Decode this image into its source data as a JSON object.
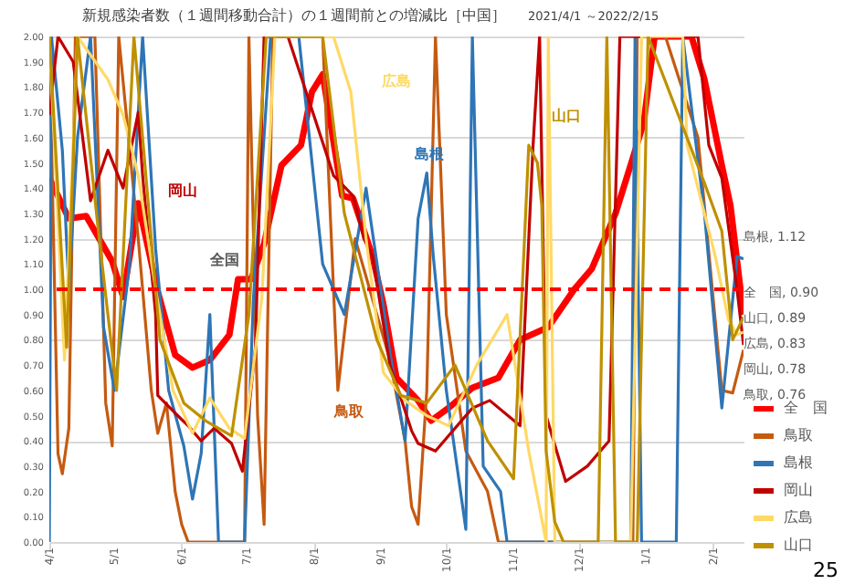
{
  "chart_data": {
    "type": "line",
    "title": "新規感染者数（１週間移動合計）の１週間前との増減比［中国］",
    "subtitle": "2021/4/1 ～2022/2/15",
    "xlim": [
      "2021-04-01",
      "2022-02-15"
    ],
    "ylim": [
      0,
      2
    ],
    "yticks": [
      {
        "value": 0,
        "label": "0.00"
      },
      {
        "value": 0.1,
        "label": "0.10"
      },
      {
        "value": 0.2,
        "label": "0.20"
      },
      {
        "value": 0.3,
        "label": "0.30"
      },
      {
        "value": 0.4,
        "label": "0.40"
      },
      {
        "value": 0.5,
        "label": "0.50"
      },
      {
        "value": 0.6,
        "label": "0.60"
      },
      {
        "value": 0.7,
        "label": "0.70"
      },
      {
        "value": 0.8,
        "label": "0.80"
      },
      {
        "value": 0.9,
        "label": "0.90"
      },
      {
        "value": 1,
        "label": "1.00"
      },
      {
        "value": 1.1,
        "label": "1.10"
      },
      {
        "value": 1.2,
        "label": "1.20"
      },
      {
        "value": 1.3,
        "label": "1.30"
      },
      {
        "value": 1.4,
        "label": "1.40"
      },
      {
        "value": 1.5,
        "label": "1.50"
      },
      {
        "value": 1.6,
        "label": "1.60"
      },
      {
        "value": 1.7,
        "label": "1.70"
      },
      {
        "value": 1.8,
        "label": "1.80"
      },
      {
        "value": 1.9,
        "label": "1.90"
      },
      {
        "value": 2,
        "label": "2.00"
      }
    ],
    "xticks": [
      {
        "value": "2021-04-01",
        "label": "4/1"
      },
      {
        "value": "2021-05-01",
        "label": "5/1"
      },
      {
        "value": "2021-06-01",
        "label": "6/1"
      },
      {
        "value": "2021-07-01",
        "label": "7/1"
      },
      {
        "value": "2021-08-01",
        "label": "8/1"
      },
      {
        "value": "2021-09-01",
        "label": "9/1"
      },
      {
        "value": "2021-10-01",
        "label": "10/1"
      },
      {
        "value": "2021-11-01",
        "label": "11/1"
      },
      {
        "value": "2021-12-01",
        "label": "12/1"
      },
      {
        "value": "2022-01-01",
        "label": "1/1"
      },
      {
        "value": "2022-02-01",
        "label": "2/1"
      }
    ],
    "grid": "y",
    "legend": "bottom right",
    "marker": "none",
    "line_style": "solid",
    "ref_lines": [
      {
        "axis": "y",
        "value": 1,
        "color": "#ff0000",
        "line_style": "dashed"
      }
    ],
    "series": [
      {
        "name": "全　国",
        "color": "#ff0000",
        "x": [
          "2021-04-01",
          "2021-04-10",
          "2021-04-18",
          "2021-04-30",
          "2021-05-05",
          "2021-05-12",
          "2021-05-21",
          "2021-05-29",
          "2021-06-06",
          "2021-06-14",
          "2021-06-23",
          "2021-06-27",
          "2021-07-03",
          "2021-07-09",
          "2021-07-17",
          "2021-07-26",
          "2021-07-31",
          "2021-08-05",
          "2021-08-14",
          "2021-08-19",
          "2021-08-28",
          "2021-09-02",
          "2021-09-08",
          "2021-09-18",
          "2021-09-24",
          "2021-10-02",
          "2021-10-13",
          "2021-10-25",
          "2021-11-04",
          "2021-11-17",
          "2021-11-29",
          "2021-12-07",
          "2021-12-18",
          "2021-12-26",
          "2021-12-31",
          "2022-01-05",
          "2022-01-14",
          "2022-01-22",
          "2022-01-28",
          "2022-02-05",
          "2022-02-09",
          "2022-02-14",
          "2022-02-15"
        ],
        "values": [
          1.44,
          1.28,
          1.29,
          1.11,
          0.97,
          1.34,
          0.99,
          0.74,
          0.69,
          0.72,
          0.82,
          1.04,
          1.04,
          1.18,
          1.49,
          1.57,
          1.78,
          1.85,
          1.37,
          1.36,
          1.13,
          0.94,
          0.65,
          0.56,
          0.48,
          0.53,
          0.61,
          0.65,
          0.8,
          0.85,
          1.0,
          1.08,
          1.3,
          1.52,
          1.66,
          2.0,
          2.0,
          2.0,
          1.83,
          1.49,
          1.33,
          0.97,
          0.9
        ]
      },
      {
        "name": "鳥取",
        "color": "#c55a11",
        "x": [
          "2021-04-01",
          "2021-04-05",
          "2021-04-07",
          "2021-04-10",
          "2021-04-13",
          "2021-04-22",
          "2021-04-27",
          "2021-04-30",
          "2021-05-03",
          "2021-05-12",
          "2021-05-18",
          "2021-05-21",
          "2021-05-25",
          "2021-05-29",
          "2021-06-01",
          "2021-06-04",
          "2021-06-30",
          "2021-07-02",
          "2021-07-06",
          "2021-07-09",
          "2021-07-13",
          "2021-08-05",
          "2021-08-12",
          "2021-08-20",
          "2021-09-05",
          "2021-09-12",
          "2021-09-15",
          "2021-09-18",
          "2021-09-22",
          "2021-09-26",
          "2021-10-01",
          "2021-10-10",
          "2021-10-20",
          "2021-10-25",
          "2021-12-26",
          "2021-12-28",
          "2022-01-10",
          "2022-01-25",
          "2022-02-05",
          "2022-02-10",
          "2022-02-15"
        ],
        "values": [
          2.0,
          0.35,
          0.27,
          0.45,
          2.0,
          2.0,
          0.55,
          0.38,
          2.0,
          1.2,
          0.6,
          0.43,
          0.55,
          0.2,
          0.07,
          0.0,
          0.0,
          2.0,
          0.5,
          0.07,
          2.0,
          2.0,
          0.6,
          1.2,
          0.72,
          0.4,
          0.14,
          0.07,
          0.6,
          2.0,
          0.9,
          0.36,
          0.2,
          0.0,
          0.0,
          2.0,
          2.0,
          1.6,
          0.6,
          0.59,
          0.76
        ]
      },
      {
        "name": "島根",
        "color": "#2e75b6",
        "x": [
          "2021-04-01",
          "2021-04-02",
          "2021-04-07",
          "2021-04-10",
          "2021-04-14",
          "2021-04-20",
          "2021-04-26",
          "2021-05-01",
          "2021-05-08",
          "2021-05-14",
          "2021-05-20",
          "2021-05-26",
          "2021-06-02",
          "2021-06-06",
          "2021-06-10",
          "2021-06-14",
          "2021-06-18",
          "2021-06-30",
          "2021-07-04",
          "2021-07-12",
          "2021-07-25",
          "2021-08-05",
          "2021-08-15",
          "2021-08-25",
          "2021-09-05",
          "2021-09-12",
          "2021-09-18",
          "2021-09-22",
          "2021-09-25",
          "2021-10-01",
          "2021-10-10",
          "2021-10-13",
          "2021-10-18",
          "2021-10-26",
          "2021-10-29",
          "2021-12-25",
          "2021-12-27",
          "2021-12-30",
          "2022-01-15",
          "2022-01-18",
          "2022-01-28",
          "2022-02-05",
          "2022-02-12",
          "2022-02-15"
        ],
        "values": [
          0.0,
          2.0,
          1.55,
          1.0,
          1.6,
          2.0,
          0.85,
          0.6,
          1.1,
          2.0,
          1.16,
          0.6,
          0.38,
          0.17,
          0.35,
          0.9,
          0.0,
          0.0,
          0.95,
          2.0,
          2.0,
          1.1,
          0.9,
          1.4,
          0.75,
          0.4,
          1.28,
          1.46,
          1.13,
          0.6,
          0.05,
          2.0,
          0.3,
          0.2,
          0.0,
          0.0,
          2.0,
          0.0,
          0.0,
          2.0,
          1.3,
          0.53,
          1.13,
          1.12
        ]
      },
      {
        "name": "岡山",
        "color": "#c00000",
        "x": [
          "2021-04-01",
          "2021-04-05",
          "2021-04-12",
          "2021-04-20",
          "2021-04-28",
          "2021-05-05",
          "2021-05-12",
          "2021-05-14",
          "2021-05-20",
          "2021-05-21",
          "2021-05-29",
          "2021-06-04",
          "2021-06-10",
          "2021-06-16",
          "2021-06-24",
          "2021-06-29",
          "2021-07-05",
          "2021-07-09",
          "2021-07-20",
          "2021-08-10",
          "2021-08-19",
          "2021-08-24",
          "2021-08-28",
          "2021-09-05",
          "2021-09-15",
          "2021-09-18",
          "2021-09-26",
          "2021-10-13",
          "2021-10-21",
          "2021-11-04",
          "2021-11-10",
          "2021-11-13",
          "2021-11-16",
          "2021-11-25",
          "2021-12-05",
          "2021-12-15",
          "2021-12-20",
          "2022-01-25",
          "2022-01-30",
          "2022-02-05",
          "2022-02-12",
          "2022-02-15"
        ],
        "values": [
          1.69,
          2.0,
          1.9,
          1.35,
          1.55,
          1.4,
          1.7,
          1.45,
          0.9,
          0.58,
          0.51,
          0.46,
          0.4,
          0.45,
          0.39,
          0.28,
          0.77,
          2.0,
          2.0,
          1.45,
          1.37,
          1.2,
          1.13,
          0.7,
          0.44,
          0.39,
          0.36,
          0.53,
          0.56,
          0.46,
          1.57,
          2.0,
          0.5,
          0.24,
          0.3,
          0.4,
          2.0,
          2.0,
          1.57,
          1.44,
          1.0,
          0.78
        ]
      },
      {
        "name": "広島",
        "color": "#ffd966",
        "x": [
          "2021-04-01",
          "2021-04-08",
          "2021-04-14",
          "2021-04-28",
          "2021-05-05",
          "2021-05-12",
          "2021-05-20",
          "2021-05-28",
          "2021-06-06",
          "2021-06-14",
          "2021-06-23",
          "2021-06-30",
          "2021-07-08",
          "2021-07-14",
          "2021-08-10",
          "2021-08-18",
          "2021-08-25",
          "2021-09-02",
          "2021-09-12",
          "2021-09-22",
          "2021-10-02",
          "2021-10-15",
          "2021-10-29",
          "2021-11-08",
          "2021-11-16",
          "2021-11-17",
          "2021-11-20",
          "2021-12-25",
          "2021-12-30",
          "2022-01-18",
          "2022-01-20",
          "2022-01-25",
          "2022-02-02",
          "2022-02-08",
          "2022-02-12",
          "2022-02-15"
        ],
        "values": [
          2.0,
          0.72,
          2.0,
          1.83,
          1.69,
          1.45,
          1.0,
          0.6,
          0.43,
          0.57,
          0.45,
          0.41,
          0.97,
          2.0,
          2.0,
          1.78,
          1.2,
          0.67,
          0.56,
          0.5,
          0.46,
          0.7,
          0.9,
          0.36,
          0.0,
          2.0,
          0.0,
          0.0,
          2.0,
          2.0,
          1.57,
          1.4,
          1.13,
          0.88,
          0.82,
          0.83
        ]
      },
      {
        "name": "山口",
        "color": "#bf9000",
        "x": [
          "2021-04-01",
          "2021-04-09",
          "2021-04-14",
          "2021-04-24",
          "2021-05-02",
          "2021-05-10",
          "2021-05-22",
          "2021-06-02",
          "2021-06-12",
          "2021-06-24",
          "2021-07-02",
          "2021-07-10",
          "2021-08-05",
          "2021-08-15",
          "2021-08-30",
          "2021-09-10",
          "2021-09-22",
          "2021-10-05",
          "2021-10-20",
          "2021-11-01",
          "2021-11-08",
          "2021-11-12",
          "2021-11-14",
          "2021-11-16",
          "2021-11-20",
          "2021-11-24",
          "2021-12-10",
          "2021-12-14",
          "2021-12-18",
          "2021-12-28",
          "2022-01-02",
          "2022-01-28",
          "2022-02-05",
          "2022-02-10",
          "2022-02-15"
        ],
        "values": [
          2.0,
          0.77,
          2.0,
          1.2,
          0.6,
          2.0,
          0.8,
          0.55,
          0.48,
          0.42,
          0.9,
          2.0,
          2.0,
          1.3,
          0.8,
          0.58,
          0.55,
          0.7,
          0.4,
          0.25,
          1.57,
          1.5,
          1.33,
          0.36,
          0.08,
          0.0,
          0.0,
          2.0,
          0.0,
          0.0,
          2.0,
          1.42,
          1.23,
          0.8,
          0.89
        ]
      }
    ],
    "annotations": [
      "岡山",
      "全国",
      "広島",
      "島根",
      "山口",
      "鳥取",
      {
        "text": "島根, 1.12",
        "x": "2022-02-15",
        "y": 1.12
      },
      {
        "text": "全　国, 0.90",
        "x": "2022-02-15",
        "y": 0.9
      },
      {
        "text": "山口, 0.89",
        "x": "2022-02-15",
        "y": 0.89
      },
      {
        "text": "広島, 0.83",
        "x": "2022-02-15",
        "y": 0.83
      },
      {
        "text": "岡山, 0.78",
        "x": "2022-02-15",
        "y": 0.78
      },
      {
        "text": "鳥取, 0.76",
        "x": "2022-02-15",
        "y": 0.76
      },
      "25"
    ]
  }
}
